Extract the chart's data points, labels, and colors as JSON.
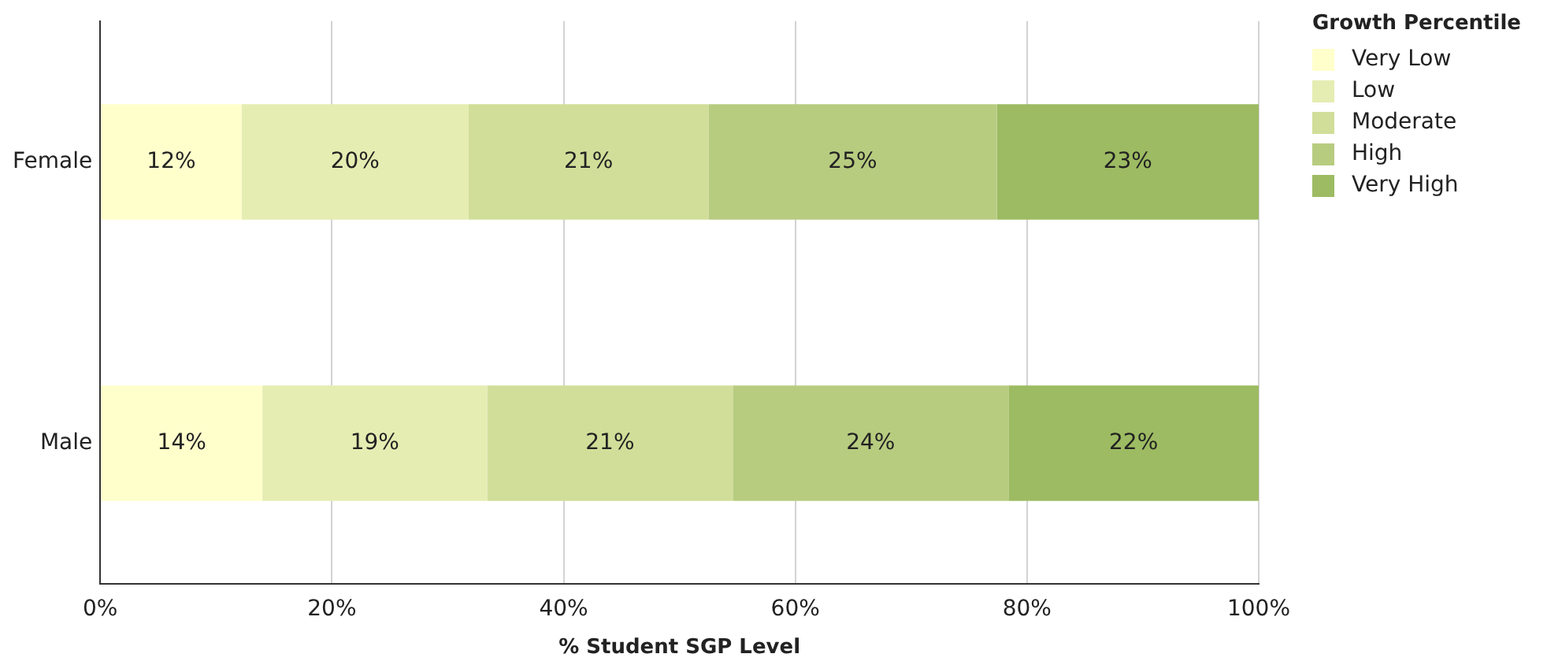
{
  "chart_data": {
    "type": "bar",
    "orientation": "horizontal",
    "stacked": true,
    "categories": [
      "Female",
      "Male"
    ],
    "series": [
      {
        "name": "Very Low",
        "color": "#ffffcc",
        "values": [
          12.2,
          14
        ],
        "value_labels": [
          "12%",
          "14%"
        ]
      },
      {
        "name": "Low",
        "color": "#e6edb2",
        "values": [
          19.6,
          19.4
        ],
        "value_labels": [
          "20%",
          "19%"
        ]
      },
      {
        "name": "Moderate",
        "color": "#d1de99",
        "values": [
          20.7,
          21.2
        ],
        "value_labels": [
          "21%",
          "21%"
        ]
      },
      {
        "name": "High",
        "color": "#b8cc80",
        "values": [
          24.9,
          23.8
        ],
        "value_labels": [
          "25%",
          "24%"
        ]
      },
      {
        "name": "Very High",
        "color": "#9dbb62",
        "values": [
          22.6,
          21.6
        ],
        "value_labels": [
          "23%",
          "22%"
        ]
      }
    ],
    "xlabel": "% Student SGP Level",
    "legend_title": "Growth Percentile",
    "xlim": [
      0,
      100
    ],
    "xticks": [
      {
        "value": 0,
        "label": "0%"
      },
      {
        "value": 20,
        "label": "20%"
      },
      {
        "value": 40,
        "label": "40%"
      },
      {
        "value": 60,
        "label": "60%"
      },
      {
        "value": 80,
        "label": "80%"
      },
      {
        "value": 100,
        "label": "100%"
      }
    ],
    "grid": "x",
    "legend": "top right"
  }
}
